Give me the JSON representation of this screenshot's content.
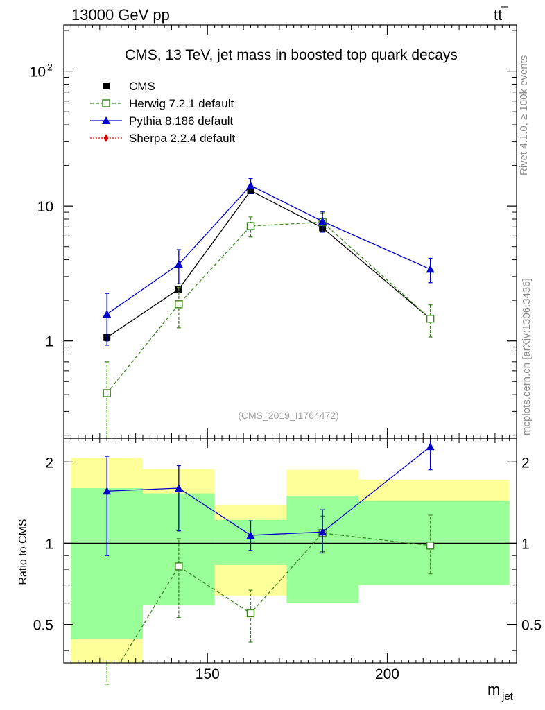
{
  "header": {
    "energy": "13000 GeV pp",
    "process_main": "tt",
    "process_bar": "–"
  },
  "side_labels": {
    "rivet": "Rivet 4.1.0, ≥ 100k events",
    "mcplots": "mcplots.cern.ch [arXiv:1306.3436]"
  },
  "colors": {
    "cms": "#000000",
    "herwig": "#3d8b1f",
    "pythia": "#0000cc",
    "sherpa": "#e00000",
    "band_inner": "#99ff99",
    "band_outer": "#ffff99"
  },
  "chart_data": [
    {
      "type": "line",
      "scale": "log",
      "title": "CMS, 13 TeV, jet mass in boosted top quark decays",
      "watermark": "(CMS_2019_I1764472)",
      "xlabel_main": "m",
      "xlabel_sub": "jet",
      "xlim": [
        110,
        236
      ],
      "ylim": [
        0.19,
        220
      ],
      "yticks": [
        {
          "value": 1,
          "label": "1"
        },
        {
          "value": 10,
          "label": "10"
        },
        {
          "value": 100,
          "label": "10",
          "sup": "2"
        }
      ],
      "legend": [
        {
          "name": "CMS",
          "style": "cms"
        },
        {
          "name": "Herwig 7.2.1 default",
          "style": "herwig"
        },
        {
          "name": "Pythia 8.186 default",
          "style": "pythia"
        },
        {
          "name": "Sherpa 2.2.4 default",
          "style": "sherpa"
        }
      ],
      "series": [
        {
          "name": "CMS",
          "style": "cms",
          "x": [
            122,
            142,
            162,
            182,
            212
          ],
          "y": [
            1.06,
            2.42,
            13.0,
            6.9,
            1.46
          ],
          "err": [
            0.06,
            0.12,
            0.6,
            0.4,
            0.08
          ]
        },
        {
          "name": "Herwig 7.2.1 default",
          "style": "herwig",
          "x": [
            122,
            142,
            162,
            182,
            212
          ],
          "y": [
            0.41,
            1.87,
            7.1,
            7.6,
            1.46
          ],
          "lo": [
            0.1,
            1.25,
            5.9,
            6.4,
            1.07
          ],
          "hi": [
            0.7,
            2.5,
            8.3,
            8.9,
            1.85
          ]
        },
        {
          "name": "Pythia 8.186 default",
          "style": "pythia",
          "x": [
            122,
            142,
            162,
            182,
            212
          ],
          "y": [
            1.58,
            3.7,
            14.2,
            7.7,
            3.4
          ],
          "lo": [
            0.93,
            2.65,
            12.4,
            6.4,
            2.7
          ],
          "hi": [
            2.25,
            4.75,
            16.0,
            9.1,
            4.1
          ]
        }
      ]
    },
    {
      "type": "line",
      "scale": "log",
      "title": "Ratio to CMS",
      "xlim": [
        110,
        236
      ],
      "ylim": [
        0.36,
        2.45
      ],
      "xticks": [
        150,
        200
      ],
      "yticks": [
        {
          "value": 0.5,
          "label": "0.5"
        },
        {
          "value": 1,
          "label": "1"
        },
        {
          "value": 2,
          "label": "2"
        }
      ],
      "reference": 1,
      "bands": [
        {
          "x0": 112,
          "x1": 132,
          "inner": [
            0.44,
            1.6
          ],
          "outer": [
            0.36,
            2.07
          ]
        },
        {
          "x0": 132,
          "x1": 152,
          "inner": [
            0.59,
            1.53
          ],
          "outer": [
            0.59,
            1.88
          ]
        },
        {
          "x0": 152,
          "x1": 172,
          "inner": [
            0.83,
            1.22
          ],
          "outer": [
            0.64,
            1.39
          ]
        },
        {
          "x0": 172,
          "x1": 192,
          "inner": [
            0.6,
            1.5
          ],
          "outer": [
            0.6,
            1.87
          ]
        },
        {
          "x0": 192,
          "x1": 234,
          "inner": [
            0.7,
            1.43
          ],
          "outer": [
            0.7,
            1.72
          ]
        }
      ],
      "series": [
        {
          "name": "Herwig 7.2.1 default",
          "style": "herwig",
          "x": [
            122,
            142,
            162,
            182,
            212
          ],
          "y": [
            0.3,
            0.82,
            0.55,
            1.09,
            0.98
          ],
          "lo": [
            0.3,
            0.53,
            0.43,
            0.93,
            0.77
          ],
          "hi": [
            0.3,
            1.04,
            0.67,
            1.26,
            1.27
          ]
        },
        {
          "name": "Pythia 8.186 default",
          "style": "pythia",
          "x": [
            122,
            142,
            162,
            182,
            212
          ],
          "y": [
            1.56,
            1.6,
            1.07,
            1.1,
            2.28
          ],
          "lo": [
            0.9,
            1.11,
            0.94,
            0.92,
            1.87
          ],
          "hi": [
            2.1,
            1.94,
            1.21,
            1.33,
            2.45
          ]
        }
      ]
    }
  ]
}
